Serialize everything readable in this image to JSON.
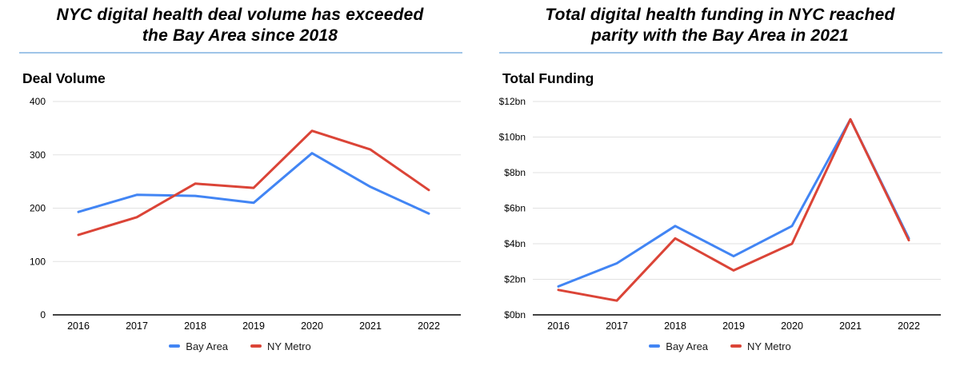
{
  "colors": {
    "bay_area_line": "#4285F4",
    "ny_metro_line": "#DB4437",
    "title_rule": "#9FC5E8",
    "gridline": "#E2E2E2",
    "axis_line": "#424242",
    "text": "#000000"
  },
  "chart_data": [
    {
      "type": "line",
      "title": "NYC digital health deal volume has exceeded the Bay Area since 2018",
      "title_lines": [
        "NYC digital health deal volume has exceeded",
        "the Bay Area since 2018"
      ],
      "panel_label": "Deal Volume",
      "categories": [
        "2016",
        "2017",
        "2018",
        "2019",
        "2020",
        "2021",
        "2022"
      ],
      "series": [
        {
          "name": "Bay Area",
          "color": "#4285F4",
          "values": [
            193,
            225,
            223,
            210,
            303,
            240,
            190
          ]
        },
        {
          "name": "NY Metro",
          "color": "#DB4437",
          "values": [
            150,
            183,
            246,
            238,
            345,
            310,
            234
          ]
        }
      ],
      "xlabel": "",
      "ylabel": "Deal Volume",
      "ylim": [
        0,
        400
      ],
      "yticks": [
        0,
        100,
        200,
        300,
        400
      ],
      "ytick_labels": [
        "0",
        "100",
        "200",
        "300",
        "400"
      ],
      "grid": true,
      "legend_position": "bottom"
    },
    {
      "type": "line",
      "title": "Total digital health funding in NYC reached parity with the Bay Area in 2021",
      "title_lines": [
        "Total digital health funding in NYC reached",
        "parity with the Bay Area in 2021"
      ],
      "panel_label": "Total Funding",
      "categories": [
        "2016",
        "2017",
        "2018",
        "2019",
        "2020",
        "2021",
        "2022"
      ],
      "series": [
        {
          "name": "Bay Area",
          "color": "#4285F4",
          "values": [
            1.6,
            2.9,
            5.0,
            3.3,
            5.0,
            11.0,
            4.3
          ]
        },
        {
          "name": "NY Metro",
          "color": "#DB4437",
          "values": [
            1.4,
            0.8,
            4.3,
            2.5,
            4.0,
            11.0,
            4.2
          ]
        }
      ],
      "xlabel": "",
      "ylabel": "Total Funding ($bn)",
      "ylim": [
        0,
        12
      ],
      "yticks": [
        0,
        2,
        4,
        6,
        8,
        10,
        12
      ],
      "ytick_labels": [
        "$0bn",
        "$2bn",
        "$4bn",
        "$6bn",
        "$8bn",
        "$10bn",
        "$12bn"
      ],
      "grid": true,
      "legend_position": "bottom"
    }
  ]
}
